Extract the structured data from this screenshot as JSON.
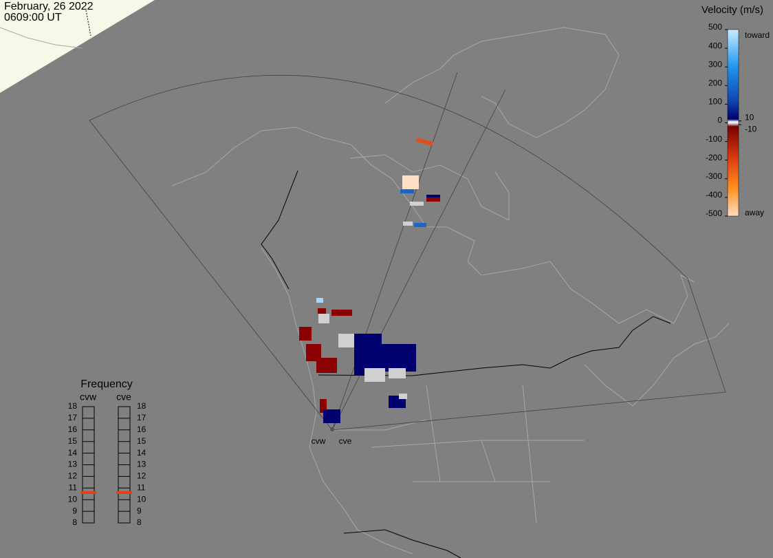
{
  "header": {
    "date": "February, 26 2022",
    "time": "0609:00 UT"
  },
  "velocity_scale": {
    "title": "Velocity (m/s)",
    "range": [
      -500,
      500
    ],
    "ticks": [
      500,
      400,
      300,
      200,
      100,
      0,
      -100,
      -200,
      -300,
      -400,
      -500
    ],
    "inner_ticks": [
      10,
      -10
    ],
    "toward_label": "toward",
    "away_label": "away"
  },
  "frequency": {
    "title": "Frequency",
    "range": [
      8,
      18
    ],
    "ticks": [
      18,
      17,
      16,
      15,
      14,
      13,
      12,
      11,
      10,
      9,
      8
    ],
    "radars": [
      {
        "name": "cvw",
        "value": 10.6
      },
      {
        "name": "cve",
        "value": 10.6
      }
    ]
  },
  "radar_labels": [
    "cvw",
    "cve"
  ]
}
